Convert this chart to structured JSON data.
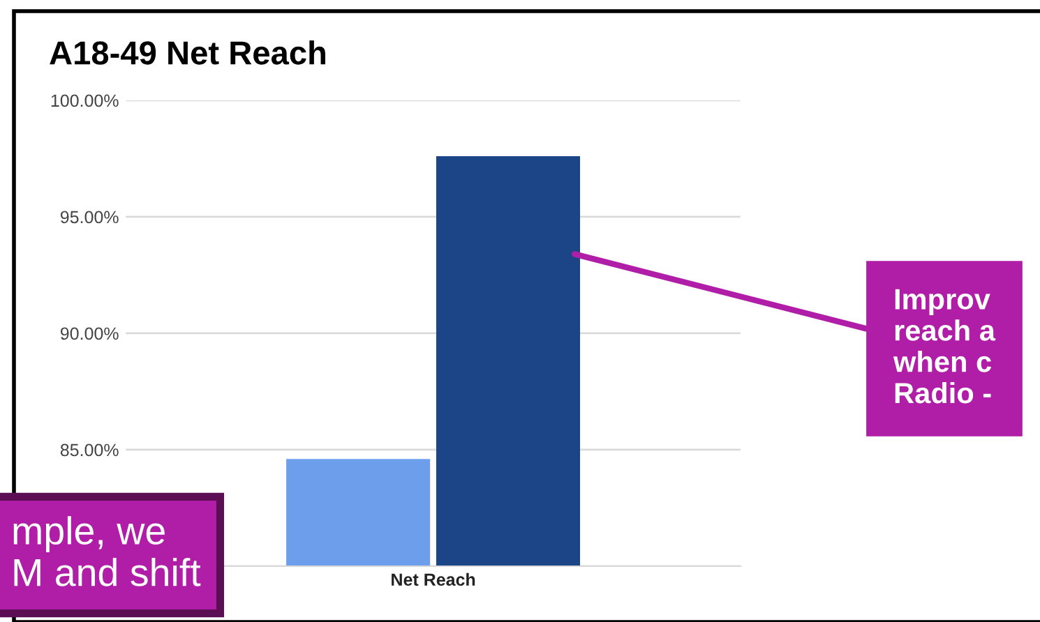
{
  "chart_data": {
    "type": "bar",
    "title": "A18-49 Net Reach",
    "categories": [
      "Net Reach"
    ],
    "series": [
      {
        "color": "#6d9eeb",
        "values": [
          84.6
        ]
      },
      {
        "color": "#1c4587",
        "values": [
          97.6
        ]
      }
    ],
    "ylim": [
      80,
      100
    ],
    "yticks": [
      {
        "value": 80,
        "label": null
      },
      {
        "value": 85,
        "label": "85.00%"
      },
      {
        "value": 90,
        "label": "90.00%"
      },
      {
        "value": 95,
        "label": "95.00%"
      },
      {
        "value": 100,
        "label": "100.00%"
      }
    ],
    "grid": "y",
    "annotations": [
      "Improv\nreach a\nwhen c\nRadio -",
      "mple, we\nM and shift"
    ]
  }
}
